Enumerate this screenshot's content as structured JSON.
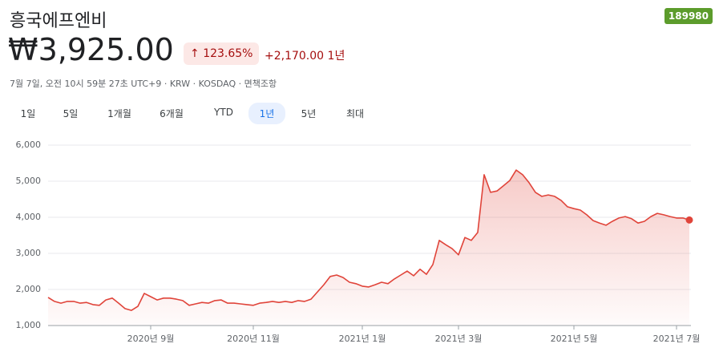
{
  "header": {
    "name": "흥국에프엔비",
    "ticker": "189980",
    "price": "₩3,925.00",
    "change_percent": "123.65%",
    "change": "+2,170.00",
    "period": "1년",
    "meta": "7월 7일, 오전 10시 59분 27초 UTC+9 · KRW · KOSDAQ · 면책조항"
  },
  "range_tabs": [
    "1일",
    "5일",
    "1개월",
    "6개월",
    "YTD",
    "1년",
    "5년",
    "최대"
  ],
  "selected_tab": "1년",
  "chart_data": {
    "type": "area",
    "color": "#e0443a",
    "grid": true,
    "categories": [
      null,
      null,
      null,
      null,
      null,
      null,
      null,
      null,
      null,
      null,
      null,
      null,
      null,
      null,
      null,
      null,
      "2020년 9월",
      null,
      null,
      null,
      null,
      null,
      null,
      null,
      null,
      null,
      null,
      null,
      null,
      null,
      null,
      null,
      "2020년 11월",
      null,
      null,
      null,
      null,
      null,
      null,
      null,
      null,
      null,
      null,
      null,
      null,
      null,
      null,
      null,
      null,
      "2021년 1월",
      null,
      null,
      null,
      null,
      null,
      null,
      null,
      null,
      null,
      null,
      null,
      null,
      null,
      null,
      "2021년 3월",
      null,
      null,
      null,
      null,
      null,
      null,
      null,
      null,
      null,
      null,
      null,
      null,
      null,
      null,
      null,
      null,
      null,
      "2021년 5월",
      null,
      null,
      null,
      null,
      null,
      null,
      null,
      null,
      null,
      null,
      null,
      null,
      null,
      null,
      null,
      "2021년 7월",
      null,
      null
    ],
    "values": [
      1780,
      1670,
      1620,
      1670,
      1670,
      1620,
      1640,
      1580,
      1560,
      1710,
      1760,
      1620,
      1470,
      1420,
      1530,
      1890,
      1800,
      1710,
      1760,
      1760,
      1730,
      1690,
      1560,
      1600,
      1640,
      1620,
      1690,
      1710,
      1620,
      1620,
      1600,
      1580,
      1560,
      1620,
      1640,
      1670,
      1640,
      1670,
      1640,
      1690,
      1670,
      1730,
      1930,
      2130,
      2360,
      2400,
      2330,
      2200,
      2160,
      2090,
      2070,
      2130,
      2200,
      2160,
      2290,
      2400,
      2510,
      2380,
      2560,
      2420,
      2690,
      3360,
      3240,
      3130,
      2960,
      3440,
      3360,
      3580,
      5180,
      4690,
      4730,
      4870,
      5020,
      5310,
      5180,
      4960,
      4690,
      4580,
      4620,
      4580,
      4470,
      4290,
      4240,
      4200,
      4070,
      3910,
      3840,
      3780,
      3890,
      3980,
      4020,
      3960,
      3840,
      3890,
      4020,
      4110,
      4070,
      4020,
      3980,
      3980,
      3925
    ],
    "ylim": [
      1000,
      6000
    ],
    "yticks": [
      {
        "value": 1000,
        "label": "1,000"
      },
      {
        "value": 2000,
        "label": "2,000"
      },
      {
        "value": 3000,
        "label": "3,000"
      },
      {
        "value": 4000,
        "label": "4,000"
      },
      {
        "value": 5000,
        "label": "5,000"
      },
      {
        "value": 6000,
        "label": "6,000"
      }
    ]
  }
}
